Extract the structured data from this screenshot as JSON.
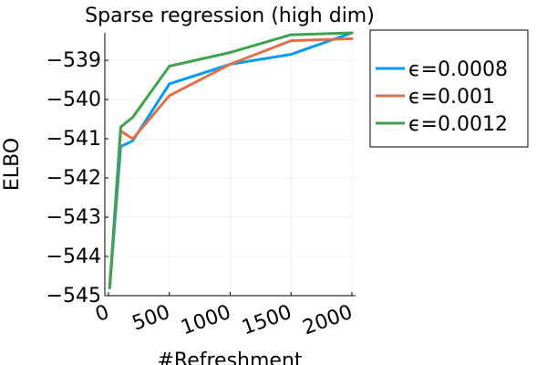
{
  "chart_data": {
    "type": "line",
    "title": "Sparse regression (high dim)",
    "xlabel": "#Refreshment",
    "ylabel": "ELBO",
    "xlim": [
      -30,
      2030
    ],
    "ylim": [
      -545,
      -538.3
    ],
    "xticks": [
      0,
      500,
      1000,
      1500,
      2000
    ],
    "yticks": [
      -545,
      -544,
      -543,
      -542,
      -541,
      -540,
      -539
    ],
    "xtick_labels": [
      "0",
      "500",
      "1000",
      "1500",
      "2000"
    ],
    "ytick_labels": [
      "−545",
      "−544",
      "−543",
      "−542",
      "−541",
      "−540",
      "−539"
    ],
    "grid": true,
    "legend_position": "outer-right-top",
    "x": [
      10,
      100,
      200,
      500,
      1000,
      1500,
      2000
    ],
    "series": [
      {
        "name": "ϵ=0.0008",
        "color": "#009af9",
        "values": [
          -544.8,
          -541.2,
          -541.05,
          -539.6,
          -539.1,
          -538.85,
          -538.3
        ]
      },
      {
        "name": "ϵ=0.001",
        "color": "#e26f46",
        "values": [
          -544.8,
          -540.8,
          -541.0,
          -539.9,
          -539.1,
          -538.5,
          -538.45
        ]
      },
      {
        "name": "ϵ=0.0012",
        "color": "#3da44d",
        "values": [
          -544.8,
          -540.7,
          -540.45,
          -539.15,
          -538.8,
          -538.35,
          -538.3
        ]
      }
    ]
  }
}
